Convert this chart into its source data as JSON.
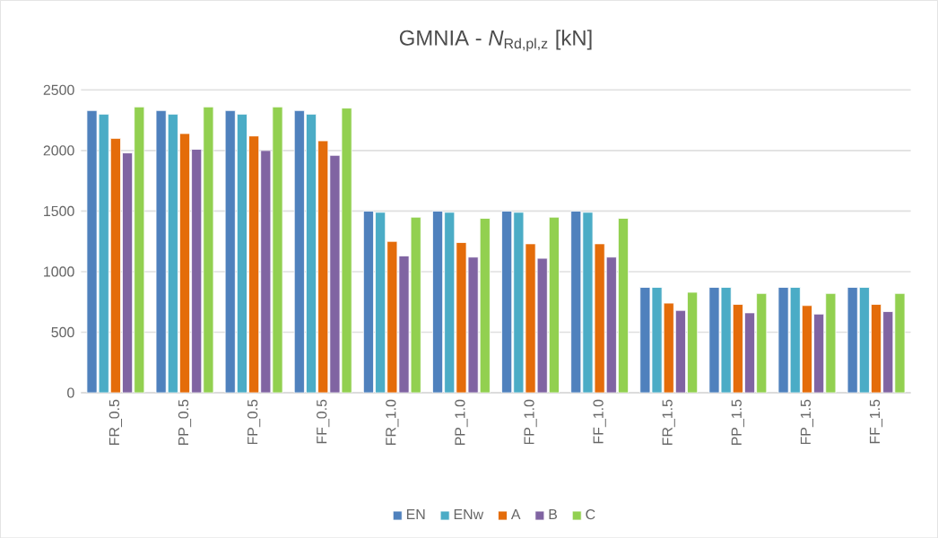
{
  "chart_data": {
    "type": "bar",
    "title": "GMNIA - *N*$_{Rd,pl,z}$ [kN]",
    "categories": [
      "FR_0.5",
      "PP_0.5",
      "FP_0.5",
      "FF_0.5",
      "FR_1.0",
      "PP_1.0",
      "FP_1.0",
      "FF_1.0",
      "FR_1.5",
      "PP_1.5",
      "FP_1.5",
      "FF_1.5"
    ],
    "series": [
      {
        "name": "EN",
        "color": "#4f81bd",
        "values": [
          2330,
          2330,
          2330,
          2330,
          1500,
          1500,
          1500,
          1500,
          870,
          870,
          870,
          870
        ]
      },
      {
        "name": "ENw",
        "color": "#4bacc6",
        "values": [
          2300,
          2300,
          2300,
          2300,
          1490,
          1490,
          1490,
          1490,
          870,
          870,
          870,
          870
        ]
      },
      {
        "name": "A",
        "color": "#e46c0a",
        "values": [
          2100,
          2140,
          2120,
          2080,
          1250,
          1240,
          1230,
          1230,
          740,
          730,
          720,
          730
        ]
      },
      {
        "name": "B",
        "color": "#8064a2",
        "values": [
          1980,
          2010,
          2000,
          1960,
          1130,
          1120,
          1110,
          1120,
          680,
          660,
          650,
          670
        ]
      },
      {
        "name": "C",
        "color": "#92d050",
        "values": [
          2360,
          2360,
          2360,
          2350,
          1450,
          1440,
          1450,
          1440,
          830,
          820,
          820,
          820
        ]
      }
    ],
    "ylim": [
      0,
      2500
    ],
    "yticks": [
      0,
      500,
      1000,
      1500,
      2000,
      2500
    ],
    "grid": "y",
    "legend": "bottom"
  }
}
